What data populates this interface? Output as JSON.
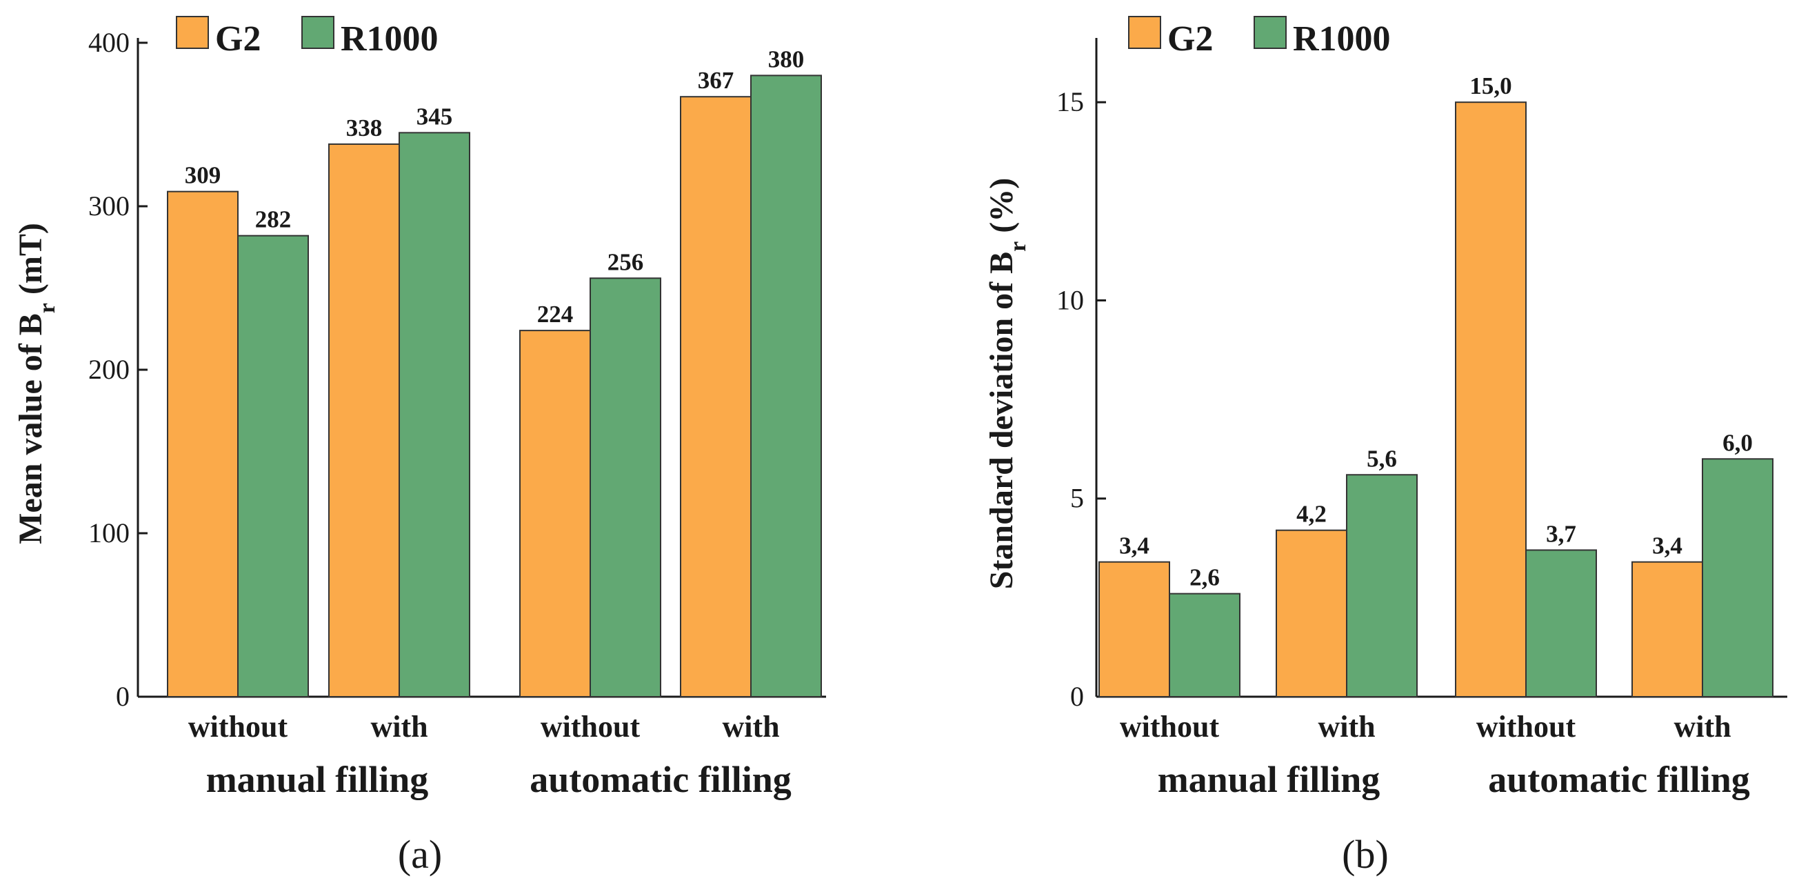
{
  "colors": {
    "G2": "#FBAA4A",
    "R1000": "#62A873"
  },
  "chart_data": [
    {
      "type": "bar",
      "panel_label": "(a)",
      "ylabel_prefix": "Mean value of B",
      "ylabel_subscript": "r",
      "ylabel_suffix": " (mT)",
      "ylim": [
        0,
        400
      ],
      "yticks": [
        0,
        100,
        200,
        300,
        400
      ],
      "categories": [
        "without",
        "with",
        "without",
        "with"
      ],
      "groups": [
        "manual filling",
        "automatic filling"
      ],
      "series": [
        {
          "name": "G2",
          "values": [
            309,
            338,
            224,
            367
          ],
          "labels": [
            "309",
            "338",
            "224",
            "367"
          ]
        },
        {
          "name": "R1000",
          "values": [
            282,
            345,
            256,
            380
          ],
          "labels": [
            "282",
            "345",
            "256",
            "380"
          ]
        }
      ],
      "legend": [
        "G2",
        "R1000"
      ],
      "legend_position": "top-left"
    },
    {
      "type": "bar",
      "panel_label": "(b)",
      "ylabel_prefix": "Standard deviation of B",
      "ylabel_subscript": "r",
      "ylabel_suffix": " (%)",
      "ylim": [
        0,
        16.5
      ],
      "yticks": [
        0,
        5,
        10,
        15
      ],
      "categories": [
        "without",
        "with",
        "without",
        "with"
      ],
      "groups": [
        "manual filling",
        "automatic filling"
      ],
      "series": [
        {
          "name": "G2",
          "values": [
            3.4,
            4.2,
            15.0,
            3.4
          ],
          "labels": [
            "3,4",
            "4,2",
            "15,0",
            "3,4"
          ]
        },
        {
          "name": "R1000",
          "values": [
            2.6,
            5.6,
            3.7,
            6.0
          ],
          "labels": [
            "2,6",
            "5,6",
            "3,7",
            "6,0"
          ]
        }
      ],
      "legend": [
        "G2",
        "R1000"
      ],
      "legend_position": "top-left"
    }
  ]
}
